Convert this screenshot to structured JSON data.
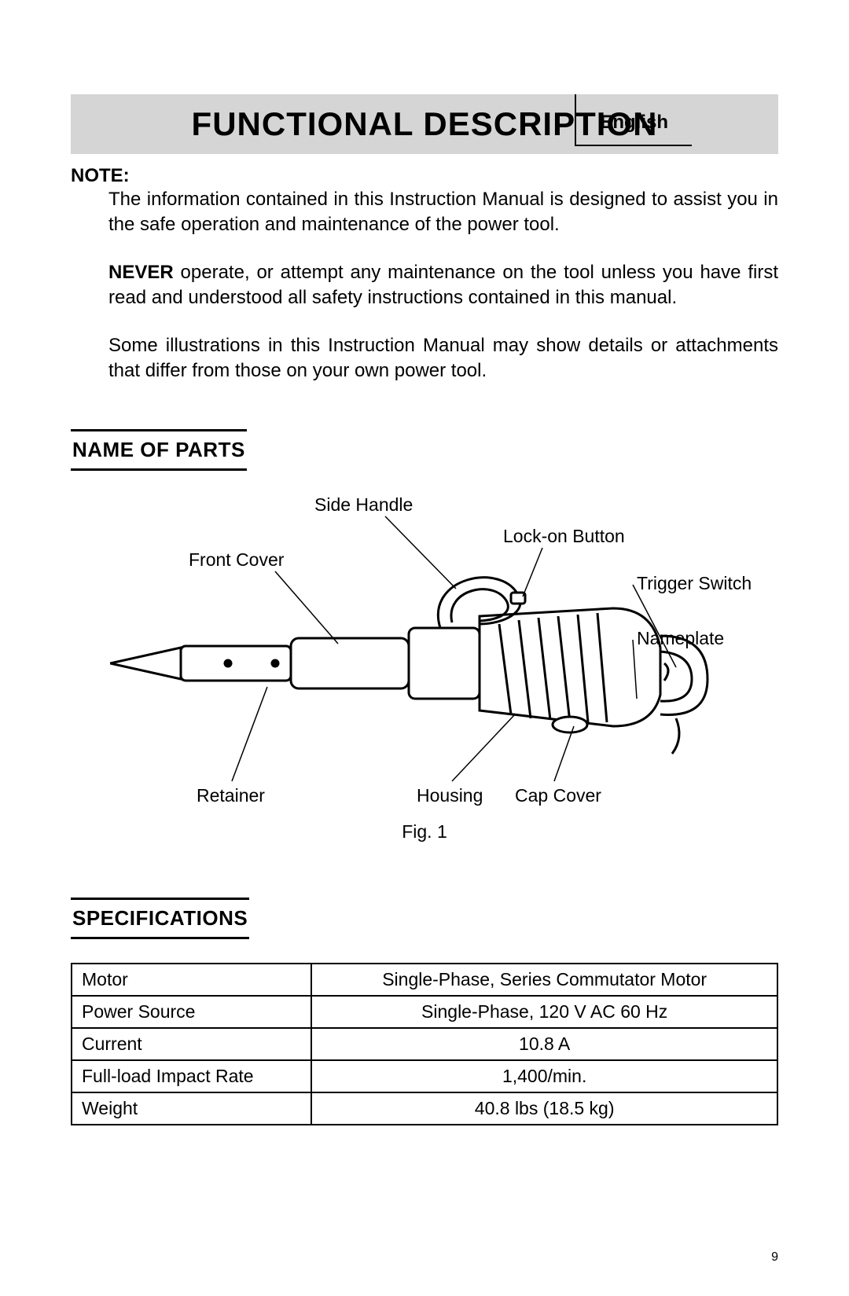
{
  "language_label": "English",
  "title": "FUNCTIONAL DESCRIPTION",
  "note": {
    "label": "NOTE:",
    "para1": "The information contained in this Instruction Manual is designed to assist you in the safe operation and maintenance of the power tool.",
    "never": "NEVER",
    "para2_rest": " operate, or attempt any maintenance on the tool unless you have first read and understood all safety instructions contained in this manual.",
    "para3": "Some illustrations in this Instruction Manual may show details or attachments that differ from those on your own power tool."
  },
  "section_parts": "NAME OF PARTS",
  "parts": {
    "side_handle": "Side Handle",
    "lock_on_button": "Lock-on Button",
    "front_cover": "Front Cover",
    "trigger_switch": "Trigger Switch",
    "nameplate": "Nameplate",
    "retainer": "Retainer",
    "housing": "Housing",
    "cap_cover": "Cap Cover"
  },
  "figure_caption": "Fig. 1",
  "section_specs": "SPECIFICATIONS",
  "spec_table": {
    "rows": [
      {
        "label": "Motor",
        "value": "Single-Phase, Series Commutator Motor"
      },
      {
        "label": "Power Source",
        "value": "Single-Phase, 120 V AC 60 Hz"
      },
      {
        "label": "Current",
        "value": "10.8 A"
      },
      {
        "label": "Full-load Impact Rate",
        "value": "1,400/min."
      },
      {
        "label": "Weight",
        "value": "40.8 lbs (18.5 kg)"
      }
    ]
  },
  "page_number": "9",
  "colors": {
    "title_bg": "#d5d5d5",
    "text": "#000000",
    "page_bg": "#ffffff"
  }
}
